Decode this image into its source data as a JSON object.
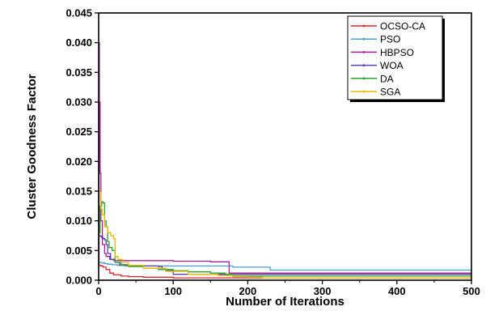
{
  "chart_data": {
    "type": "line",
    "title": "",
    "xlabel": "Number of Iterations",
    "ylabel": "Cluster Goodness Factor",
    "xlim": [
      0,
      500
    ],
    "ylim": [
      0,
      0.045
    ],
    "xticks": [
      0,
      100,
      200,
      300,
      400,
      500
    ],
    "yticks": [
      0.0,
      0.005,
      0.01,
      0.015,
      0.02,
      0.025,
      0.03,
      0.035,
      0.04,
      0.045
    ],
    "ytick_labels": [
      "0.000",
      "0.005",
      "0.010",
      "0.015",
      "0.020",
      "0.025",
      "0.030",
      "0.035",
      "0.040",
      "0.045"
    ],
    "xtick_labels": [
      "0",
      "100",
      "200",
      "300",
      "400",
      "500"
    ],
    "grid": false,
    "legend_position": "top-right",
    "series": [
      {
        "name": "OCSO-CA",
        "color": "#d62728",
        "x": [
          0,
          1,
          3,
          6,
          10,
          15,
          20,
          30,
          40,
          60,
          100,
          200,
          300,
          500
        ],
        "y": [
          0.0025,
          0.0025,
          0.0024,
          0.0022,
          0.0018,
          0.0012,
          0.0009,
          0.0007,
          0.0006,
          0.0005,
          0.0004,
          0.0004,
          0.0004,
          0.0004
        ]
      },
      {
        "name": "PSO",
        "color": "#4a9fd8",
        "x": [
          0,
          2,
          4,
          8,
          12,
          18,
          25,
          35,
          60,
          100,
          150,
          178,
          180,
          228,
          230,
          300,
          500
        ],
        "y": [
          0.003,
          0.003,
          0.0029,
          0.0028,
          0.0027,
          0.0026,
          0.0025,
          0.0024,
          0.0024,
          0.0024,
          0.0024,
          0.0024,
          0.0022,
          0.0022,
          0.0017,
          0.0017,
          0.0017
        ]
      },
      {
        "name": "HBPSO",
        "color": "#a0238f",
        "x": [
          0,
          0.5,
          1,
          2,
          3,
          5,
          8,
          10,
          15,
          20,
          30,
          40,
          60,
          100,
          150,
          173,
          175,
          300,
          500
        ],
        "y": [
          0.0025,
          0.04,
          0.03,
          0.018,
          0.01,
          0.006,
          0.0045,
          0.004,
          0.0035,
          0.0033,
          0.0033,
          0.0033,
          0.0033,
          0.0032,
          0.0031,
          0.0031,
          0.0012,
          0.0012,
          0.0012
        ]
      },
      {
        "name": "WOA",
        "color": "#5b3fa8",
        "x": [
          0,
          2,
          4,
          6,
          8,
          10,
          12,
          16,
          22,
          28,
          40,
          55,
          70,
          80,
          85,
          90,
          100,
          150,
          300,
          500
        ],
        "y": [
          0.0075,
          0.0074,
          0.0072,
          0.007,
          0.0068,
          0.006,
          0.0045,
          0.0035,
          0.003,
          0.0026,
          0.0024,
          0.0024,
          0.0024,
          0.0023,
          0.002,
          0.0016,
          0.001,
          0.001,
          0.001,
          0.001
        ]
      },
      {
        "name": "DA",
        "color": "#2ca02c",
        "x": [
          0,
          2,
          4,
          6,
          8,
          10,
          12,
          14,
          18,
          22,
          30,
          40,
          60,
          80,
          100,
          120,
          150,
          170,
          180,
          300,
          500
        ],
        "y": [
          0.008,
          0.0125,
          0.0132,
          0.013,
          0.01,
          0.009,
          0.0065,
          0.0055,
          0.005,
          0.003,
          0.0025,
          0.0023,
          0.002,
          0.0018,
          0.0016,
          0.0014,
          0.0012,
          0.001,
          0.0007,
          0.0007,
          0.0007
        ]
      },
      {
        "name": "SGA",
        "color": "#e8b800",
        "x": [
          0,
          1,
          3,
          5,
          8,
          12,
          16,
          20,
          22,
          26,
          32,
          40,
          60,
          90,
          120,
          160,
          180,
          200,
          220,
          300,
          500
        ],
        "y": [
          0.015,
          0.0148,
          0.012,
          0.011,
          0.009,
          0.008,
          0.0075,
          0.007,
          0.004,
          0.0035,
          0.003,
          0.0025,
          0.002,
          0.0015,
          0.001,
          0.0008,
          0.0006,
          0.0005,
          0.0004,
          0.0004,
          0.0004
        ]
      }
    ]
  }
}
